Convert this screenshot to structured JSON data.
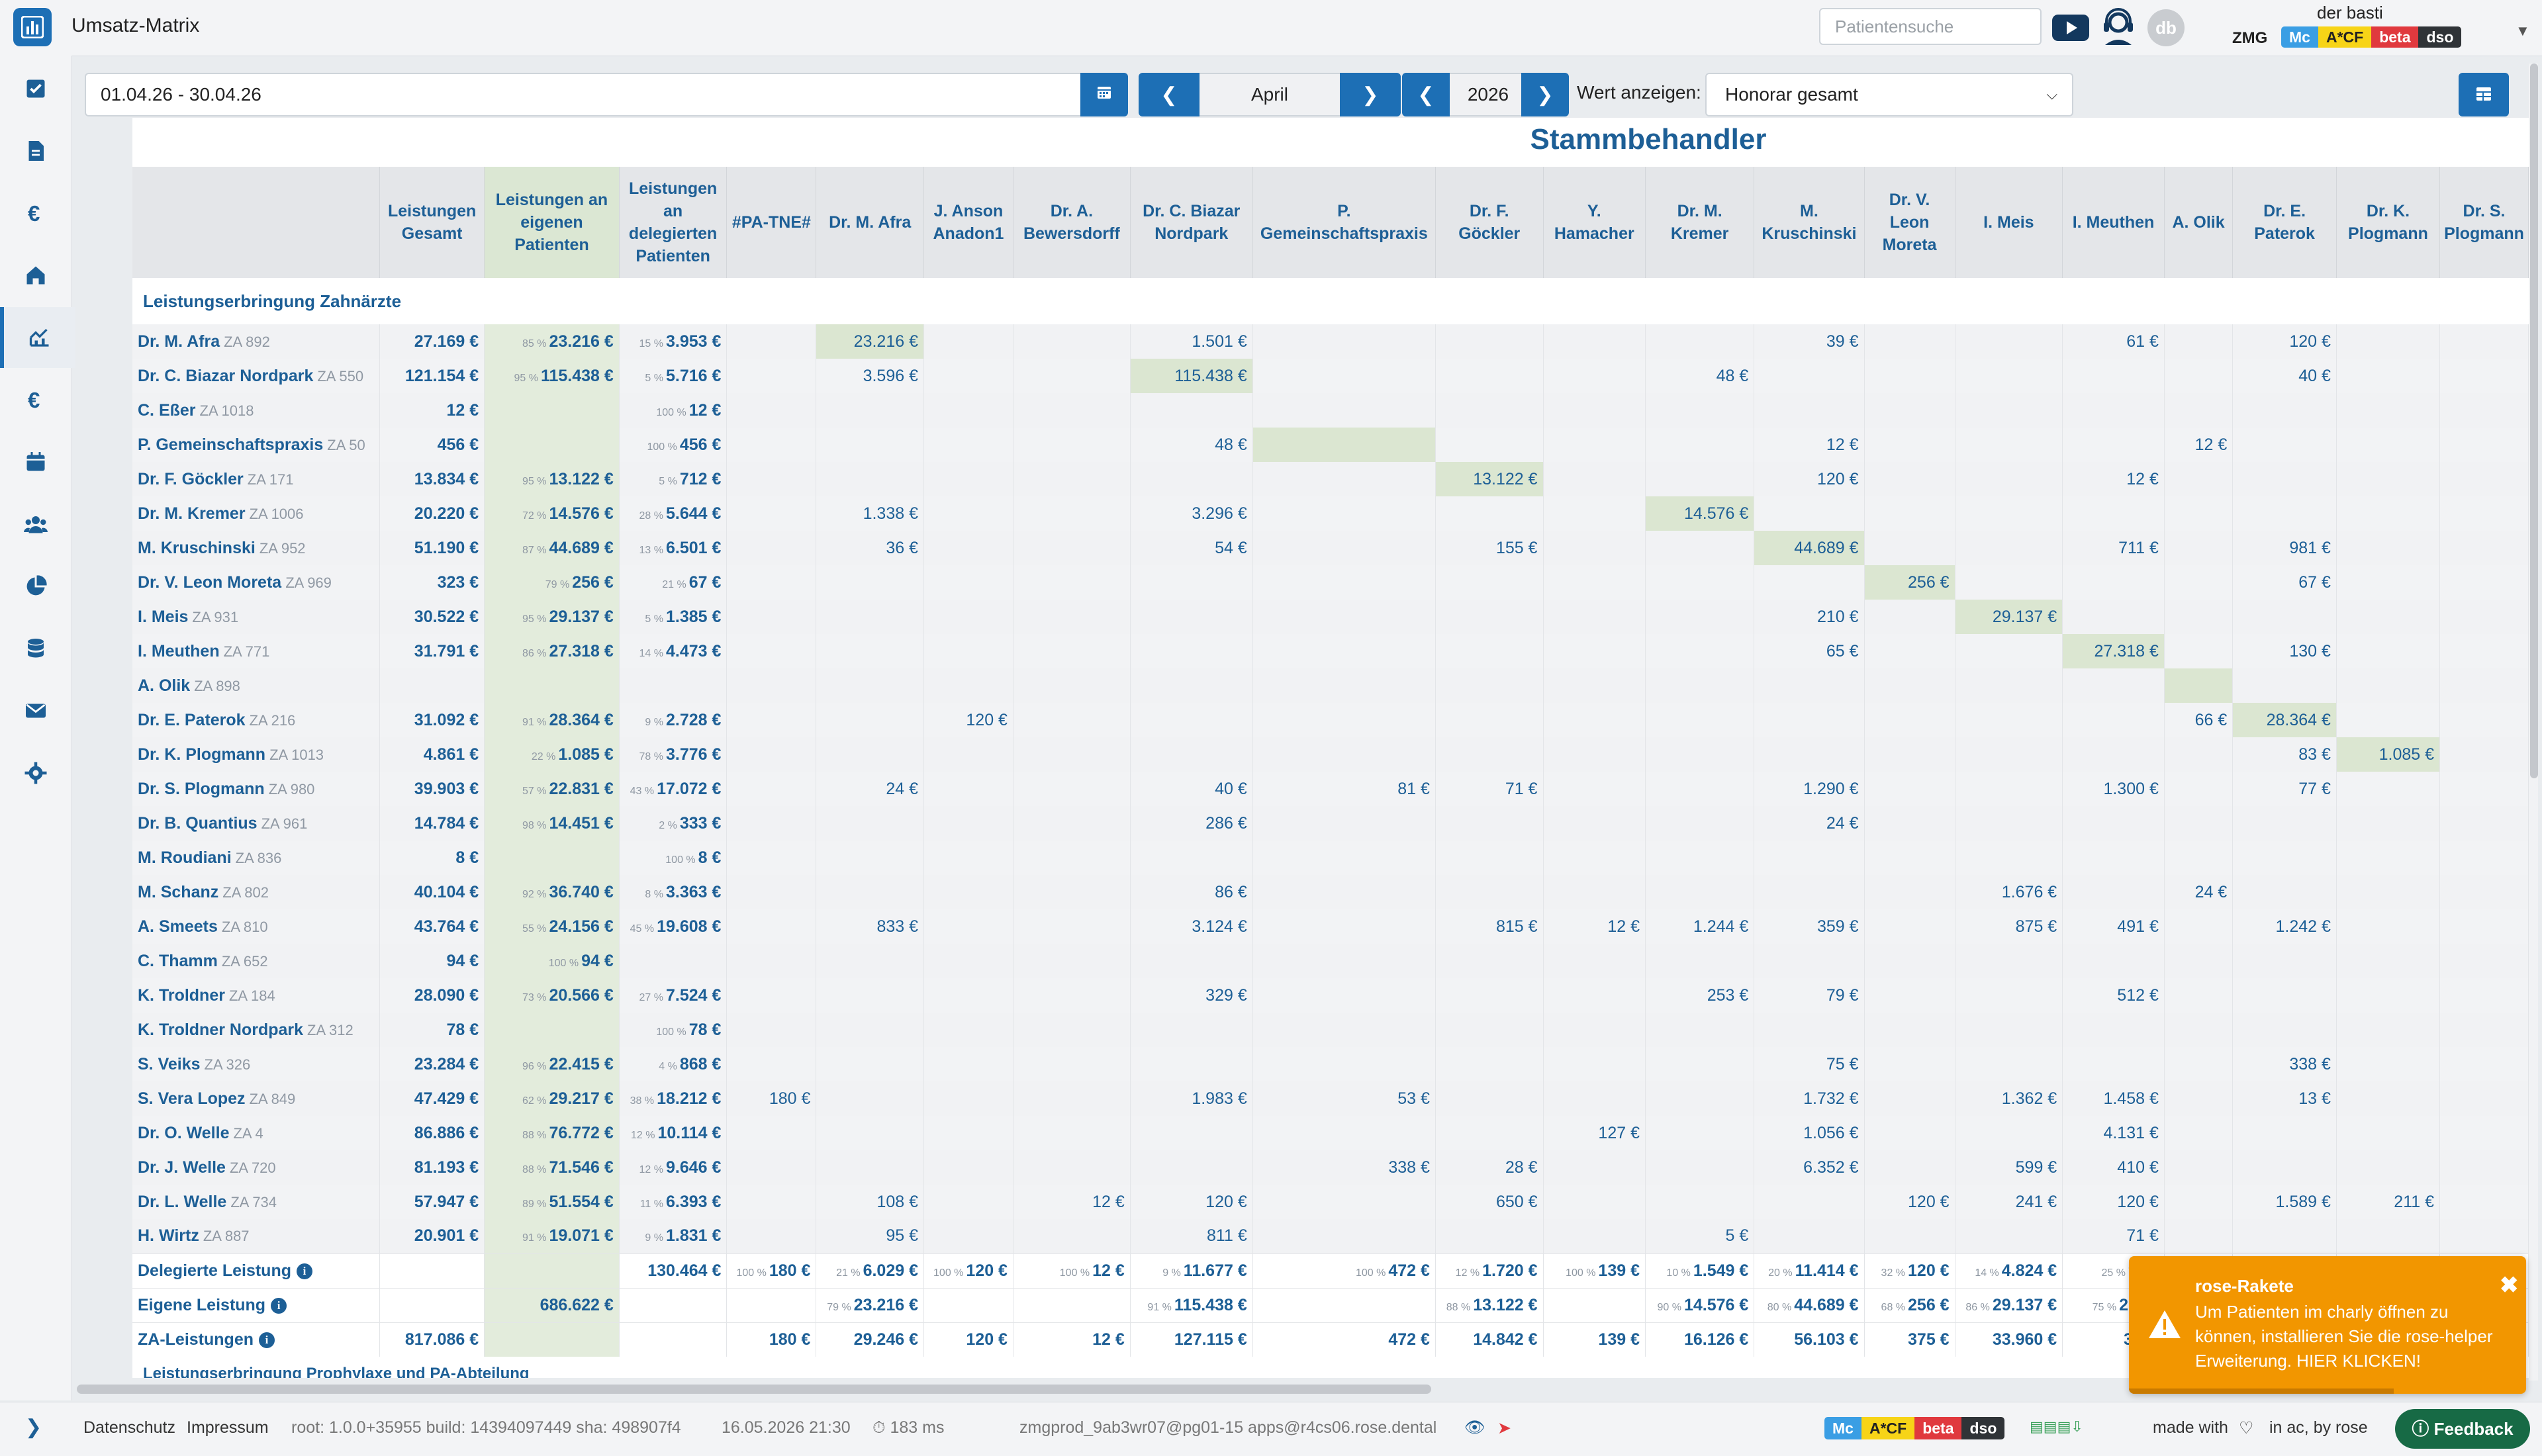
{
  "app": {
    "title": "Umsatz-Matrix"
  },
  "header": {
    "search_placeholder": "Patientensuche",
    "avatar_initials": "db",
    "user_name": "der basti",
    "practice": "ZMG",
    "badges": [
      "Mc",
      "A*CF",
      "beta",
      "dso"
    ]
  },
  "toolbar": {
    "date_range": "01.04.26 - 30.04.26",
    "month": "April",
    "year": "2026",
    "value_label": "Wert anzeigen:",
    "value_select": "Honorar gesamt"
  },
  "matrix": {
    "title": "Stammbehandler",
    "columns": [
      "Leistungen Gesamt",
      "Leistungen an eigenen Patienten",
      "Leistungen an delegierten Patienten",
      "#PA-TNE#",
      "Dr. M. Afra",
      "J. Anson Anadon1",
      "Dr. A. Bewersdorff",
      "Dr. C. Biazar Nordpark",
      "P. Gemeinschaftspraxis",
      "Dr. F. Göckler",
      "Y. Hamacher",
      "Dr. M. Kremer",
      "M. Kruschinski",
      "Dr. V. Leon Moreta",
      "I. Meis",
      "I. Meuthen",
      "A. Olik",
      "Dr. E. Paterok",
      "Dr. K. Plogmann",
      "Dr. S. Plogmann"
    ],
    "section": "Leistungserbringung Zahnärzte",
    "rows": [
      {
        "name": "Dr. M. Afra",
        "za": "ZA 892",
        "total": "27.169 €",
        "own_pct": "85 %",
        "own": "23.216 €",
        "del_pct": "15 %",
        "del": "3.953 €",
        "cells": {
          "4": "23.216 €",
          "7": "1.501 €",
          "12": "39 €",
          "15": "61 €",
          "17": "120 €"
        },
        "diag": 4
      },
      {
        "name": "Dr. C. Biazar Nordpark",
        "za": "ZA 550",
        "total": "121.154 €",
        "own_pct": "95 %",
        "own": "115.438 €",
        "del_pct": "5 %",
        "del": "5.716 €",
        "cells": {
          "4": "3.596 €",
          "7": "115.438 €",
          "11": "48 €",
          "17": "40 €"
        },
        "diag": 7
      },
      {
        "name": "C. Eßer",
        "za": "ZA 1018",
        "total": "12 €",
        "own_pct": "",
        "own": "",
        "del_pct": "100 %",
        "del": "12 €",
        "cells": {}
      },
      {
        "name": "P. Gemeinschaftspraxis",
        "za": "ZA 50",
        "total": "456 €",
        "own_pct": "",
        "own": "",
        "del_pct": "100 %",
        "del": "456 €",
        "cells": {
          "7": "48 €",
          "12": "12 €",
          "16": "12 €"
        },
        "diag": 8
      },
      {
        "name": "Dr. F. Göckler",
        "za": "ZA 171",
        "total": "13.834 €",
        "own_pct": "95 %",
        "own": "13.122 €",
        "del_pct": "5 %",
        "del": "712 €",
        "cells": {
          "9": "13.122 €",
          "12": "120 €",
          "15": "12 €"
        },
        "diag": 9
      },
      {
        "name": "Dr. M. Kremer",
        "za": "ZA 1006",
        "total": "20.220 €",
        "own_pct": "72 %",
        "own": "14.576 €",
        "del_pct": "28 %",
        "del": "5.644 €",
        "cells": {
          "4": "1.338 €",
          "7": "3.296 €",
          "11": "14.576 €"
        },
        "diag": 11
      },
      {
        "name": "M. Kruschinski",
        "za": "ZA 952",
        "total": "51.190 €",
        "own_pct": "87 %",
        "own": "44.689 €",
        "del_pct": "13 %",
        "del": "6.501 €",
        "cells": {
          "4": "36 €",
          "7": "54 €",
          "9": "155 €",
          "12": "44.689 €",
          "15": "711 €",
          "17": "981 €"
        },
        "diag": 12
      },
      {
        "name": "Dr. V. Leon Moreta",
        "za": "ZA 969",
        "total": "323 €",
        "own_pct": "79 %",
        "own": "256 €",
        "del_pct": "21 %",
        "del": "67 €",
        "cells": {
          "13": "256 €",
          "17": "67 €"
        },
        "diag": 13
      },
      {
        "name": "I. Meis",
        "za": "ZA 931",
        "total": "30.522 €",
        "own_pct": "95 %",
        "own": "29.137 €",
        "del_pct": "5 %",
        "del": "1.385 €",
        "cells": {
          "12": "210 €",
          "14": "29.137 €"
        },
        "diag": 14
      },
      {
        "name": "I. Meuthen",
        "za": "ZA 771",
        "total": "31.791 €",
        "own_pct": "86 %",
        "own": "27.318 €",
        "del_pct": "14 %",
        "del": "4.473 €",
        "cells": {
          "12": "65 €",
          "15": "27.318 €",
          "17": "130 €"
        },
        "diag": 15
      },
      {
        "name": "A. Olik",
        "za": "ZA 898",
        "total": "",
        "own_pct": "",
        "own": "",
        "del_pct": "",
        "del": "",
        "cells": {},
        "diag": 16
      },
      {
        "name": "Dr. E. Paterok",
        "za": "ZA 216",
        "total": "31.092 €",
        "own_pct": "91 %",
        "own": "28.364 €",
        "del_pct": "9 %",
        "del": "2.728 €",
        "cells": {
          "5": "120 €",
          "16": "66 €",
          "17": "28.364 €"
        },
        "diag": 17
      },
      {
        "name": "Dr. K. Plogmann",
        "za": "ZA 1013",
        "total": "4.861 €",
        "own_pct": "22 %",
        "own": "1.085 €",
        "del_pct": "78 %",
        "del": "3.776 €",
        "cells": {
          "17": "83 €",
          "18": "1.085 €"
        },
        "diag": 18
      },
      {
        "name": "Dr. S. Plogmann",
        "za": "ZA 980",
        "total": "39.903 €",
        "own_pct": "57 %",
        "own": "22.831 €",
        "del_pct": "43 %",
        "del": "17.072 €",
        "cells": {
          "4": "24 €",
          "7": "40 €",
          "8": "81 €",
          "9": "71 €",
          "12": "1.290 €",
          "15": "1.300 €",
          "17": "77 €"
        }
      },
      {
        "name": "Dr. B. Quantius",
        "za": "ZA 961",
        "total": "14.784 €",
        "own_pct": "98 %",
        "own": "14.451 €",
        "del_pct": "2 %",
        "del": "333 €",
        "cells": {
          "7": "286 €",
          "12": "24 €"
        }
      },
      {
        "name": "M. Roudiani",
        "za": "ZA 836",
        "total": "8 €",
        "own_pct": "",
        "own": "",
        "del_pct": "100 %",
        "del": "8 €",
        "cells": {}
      },
      {
        "name": "M. Schanz",
        "za": "ZA 802",
        "total": "40.104 €",
        "own_pct": "92 %",
        "own": "36.740 €",
        "del_pct": "8 %",
        "del": "3.363 €",
        "cells": {
          "7": "86 €",
          "14": "1.676 €",
          "16": "24 €"
        }
      },
      {
        "name": "A. Smeets",
        "za": "ZA 810",
        "total": "43.764 €",
        "own_pct": "55 %",
        "own": "24.156 €",
        "del_pct": "45 %",
        "del": "19.608 €",
        "cells": {
          "4": "833 €",
          "7": "3.124 €",
          "9": "815 €",
          "10": "12 €",
          "11": "1.244 €",
          "12": "359 €",
          "14": "875 €",
          "15": "491 €",
          "17": "1.242 €"
        }
      },
      {
        "name": "C. Thamm",
        "za": "ZA 652",
        "total": "94 €",
        "own_pct": "100 %",
        "own": "94 €",
        "del_pct": "",
        "del": "",
        "cells": {}
      },
      {
        "name": "K. Troldner",
        "za": "ZA 184",
        "total": "28.090 €",
        "own_pct": "73 %",
        "own": "20.566 €",
        "del_pct": "27 %",
        "del": "7.524 €",
        "cells": {
          "7": "329 €",
          "11": "253 €",
          "12": "79 €",
          "15": "512 €"
        }
      },
      {
        "name": "K. Troldner Nordpark",
        "za": "ZA 312",
        "total": "78 €",
        "own_pct": "",
        "own": "",
        "del_pct": "100 %",
        "del": "78 €",
        "cells": {}
      },
      {
        "name": "S. Veiks",
        "za": "ZA 326",
        "total": "23.284 €",
        "own_pct": "96 %",
        "own": "22.415 €",
        "del_pct": "4 %",
        "del": "868 €",
        "cells": {
          "12": "75 €",
          "17": "338 €"
        }
      },
      {
        "name": "S. Vera Lopez",
        "za": "ZA 849",
        "total": "47.429 €",
        "own_pct": "62 %",
        "own": "29.217 €",
        "del_pct": "38 %",
        "del": "18.212 €",
        "cells": {
          "3": "180 €",
          "7": "1.983 €",
          "8": "53 €",
          "12": "1.732 €",
          "14": "1.362 €",
          "15": "1.458 €",
          "17": "13 €"
        }
      },
      {
        "name": "Dr. O. Welle",
        "za": "ZA 4",
        "total": "86.886 €",
        "own_pct": "88 %",
        "own": "76.772 €",
        "del_pct": "12 %",
        "del": "10.114 €",
        "cells": {
          "10": "127 €",
          "12": "1.056 €",
          "15": "4.131 €"
        }
      },
      {
        "name": "Dr. J. Welle",
        "za": "ZA 720",
        "total": "81.193 €",
        "own_pct": "88 %",
        "own": "71.546 €",
        "del_pct": "12 %",
        "del": "9.646 €",
        "cells": {
          "8": "338 €",
          "9": "28 €",
          "12": "6.352 €",
          "14": "599 €",
          "15": "410 €"
        }
      },
      {
        "name": "Dr. L. Welle",
        "za": "ZA 734",
        "total": "57.947 €",
        "own_pct": "89 %",
        "own": "51.554 €",
        "del_pct": "11 %",
        "del": "6.393 €",
        "cells": {
          "4": "108 €",
          "6": "12 €",
          "7": "120 €",
          "9": "650 €",
          "13": "120 €",
          "14": "241 €",
          "15": "120 €",
          "17": "1.589 €",
          "18": "211 €"
        }
      },
      {
        "name": "H. Wirtz",
        "za": "ZA 887",
        "total": "20.901 €",
        "own_pct": "91 %",
        "own": "19.071 €",
        "del_pct": "9 %",
        "del": "1.831 €",
        "cells": {
          "4": "95 €",
          "7": "811 €",
          "11": "5 €",
          "15": "71 €"
        }
      }
    ],
    "summary": [
      {
        "label": "Delegierte Leistung",
        "info": true,
        "values": {
          "2": [
            "",
            "130.464 €"
          ],
          "3": [
            "100 %",
            "180 €"
          ],
          "4": [
            "21 %",
            "6.029 €"
          ],
          "5": [
            "100 %",
            "120 €"
          ],
          "6": [
            "100 %",
            "12 €"
          ],
          "7": [
            "9 %",
            "11.677 €"
          ],
          "8": [
            "100 %",
            "472 €"
          ],
          "9": [
            "12 %",
            "1.720 €"
          ],
          "10": [
            "100 %",
            "139 €"
          ],
          "11": [
            "10 %",
            "1.549 €"
          ],
          "12": [
            "20 %",
            "11.414 €"
          ],
          "13": [
            "32 %",
            "120 €"
          ],
          "14": [
            "14 %",
            "4.824 €"
          ],
          "15": [
            "25 %",
            "9.…"
          ]
        }
      },
      {
        "label": "Eigene Leistung",
        "info": true,
        "values": {
          "1": [
            "",
            "686.622 €"
          ],
          "4": [
            "79 %",
            "23.216 €"
          ],
          "7": [
            "91 %",
            "115.438 €"
          ],
          "9": [
            "88 %",
            "13.122 €"
          ],
          "11": [
            "90 %",
            "14.576 €"
          ],
          "12": [
            "80 %",
            "44.689 €"
          ],
          "13": [
            "68 %",
            "256 €"
          ],
          "14": [
            "86 %",
            "29.137 €"
          ],
          "15": [
            "75 %",
            "27.…"
          ]
        }
      },
      {
        "label": "ZA-Leistungen",
        "info": true,
        "values": {
          "0": [
            "",
            "817.086 €"
          ],
          "3": [
            "",
            "180 €"
          ],
          "4": [
            "",
            "29.246 €"
          ],
          "5": [
            "",
            "120 €"
          ],
          "6": [
            "",
            "12 €"
          ],
          "7": [
            "",
            "127.115 €"
          ],
          "8": [
            "",
            "472 €"
          ],
          "9": [
            "",
            "14.842 €"
          ],
          "10": [
            "",
            "139 €"
          ],
          "11": [
            "",
            "16.126 €"
          ],
          "12": [
            "",
            "56.103 €"
          ],
          "13": [
            "",
            "375 €"
          ],
          "14": [
            "",
            "33.960 €"
          ],
          "15": [
            "",
            "36…"
          ]
        }
      }
    ],
    "next_section": "Leistungserbringung Prophylaxe und PA-Abteilung"
  },
  "footer": {
    "privacy": "Datenschutz",
    "imprint": "Impressum",
    "build": "root: 1.0.0+35955  build: 14394097449  sha: 498907f4",
    "datetime": "16.05.2026 21:30",
    "timing": "183 ms",
    "connection": "zmgprod_9ab3wr07@pg01-15  apps@r4cs06.rose.dental",
    "made_with": "made with",
    "made_by": "in ac, by rose",
    "feedback": "Feedback"
  },
  "toast": {
    "title": "rose-Rakete",
    "message": "Um Patienten im charly öffnen zu können, installieren Sie die rose-helper Erweiterung. HIER KLICKEN!"
  }
}
